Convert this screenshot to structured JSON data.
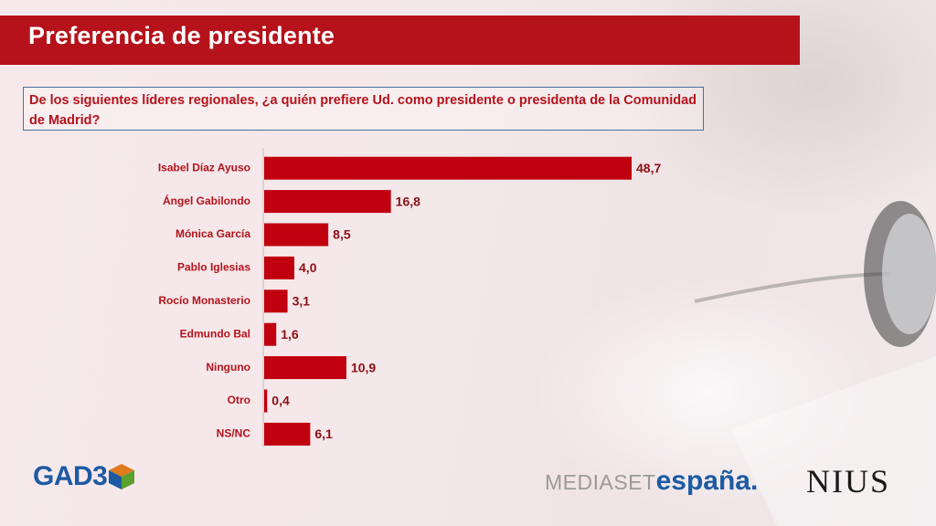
{
  "header": {
    "title": "Preferencia de presidente"
  },
  "question": "De los siguientes líderes regionales, ¿a quién prefiere Ud. como presidente o presidenta de la Comunidad de Madrid?",
  "chart_data": {
    "type": "bar",
    "orientation": "horizontal",
    "categories": [
      "Isabel Díaz Ayuso",
      "Ángel Gabilondo",
      "Mónica García",
      "Pablo Iglesias",
      "Rocío Monasterio",
      "Edmundo Bal",
      "Ninguno",
      "Otro",
      "NS/NC"
    ],
    "values": [
      48.7,
      16.8,
      8.5,
      4.0,
      3.1,
      1.6,
      10.9,
      0.4,
      6.1
    ],
    "value_labels": [
      "48,7",
      "16,8",
      "8,5",
      "4,0",
      "3,1",
      "1,6",
      "10,9",
      "0,4",
      "6,1"
    ],
    "title": "Preferencia de presidente",
    "xlim": [
      0,
      50
    ],
    "grid": false,
    "bar_color": "#c0000f"
  },
  "logos": {
    "gad3": "GAD3",
    "mediaset_part1": "MEDIASET",
    "mediaset_part2": "españa",
    "nius": "NIUS"
  },
  "colors": {
    "brand_red": "#b5121b",
    "label_red": "#b5121b",
    "gad3_blue": "#1d5aa3"
  }
}
